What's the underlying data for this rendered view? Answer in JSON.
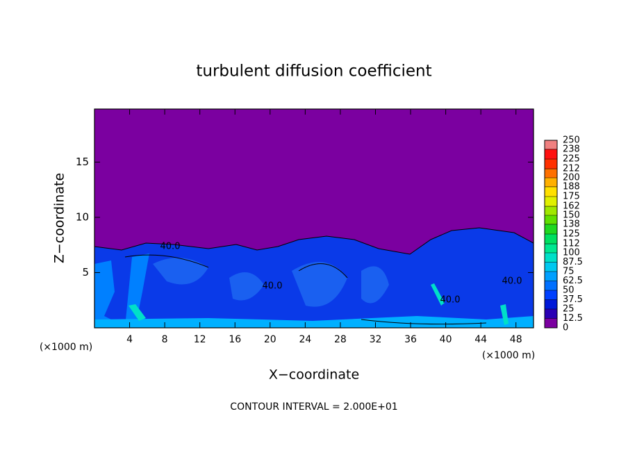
{
  "chart_data": {
    "type": "contour",
    "title": "turbulent diffusion coefficient",
    "xlabel": "X−coordinate",
    "ylabel": "Z−coordinate",
    "x_unit_label": "(×1000 m)",
    "footnote": "CONTOUR INTERVAL = 2.000E+01",
    "xlim": [
      0,
      50
    ],
    "ylim": [
      0,
      19.8
    ],
    "xticks": [
      4,
      8,
      12,
      16,
      20,
      24,
      28,
      32,
      36,
      40,
      44,
      48
    ],
    "yticks": [
      5,
      10,
      15
    ],
    "contour_labels": [
      "40.0",
      "40.0",
      "40.0",
      "40.0"
    ],
    "colorbar": {
      "lim": [
        0,
        250
      ],
      "ticks": [
        0,
        12.5,
        25,
        37.5,
        50,
        62.5,
        75,
        87.5,
        100,
        112,
        125,
        138,
        150,
        162,
        175,
        188,
        200,
        212,
        225,
        238,
        250
      ],
      "colors": [
        "#7b00a0",
        "#2a00b4",
        "#0018d8",
        "#0040ff",
        "#0070ff",
        "#00a0ff",
        "#00c8f0",
        "#00e0c8",
        "#00e890",
        "#00e060",
        "#20d820",
        "#60e000",
        "#a0e800",
        "#e0f000",
        "#ffe000",
        "#ffb000",
        "#ff7000",
        "#ff3000",
        "#ff1010",
        "#f08080"
      ]
    }
  }
}
